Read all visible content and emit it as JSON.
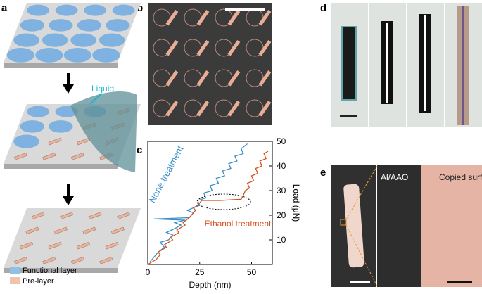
{
  "panels": {
    "a": "a",
    "b": "b",
    "c": "c",
    "d": "d",
    "e": "e"
  },
  "panel_a": {
    "liquid": "Liquid",
    "legend": [
      "Functional layer",
      "Pre-layer"
    ]
  },
  "panel_e": {
    "left": "Al/AAO",
    "right": "Copied surface"
  },
  "chart_data": {
    "type": "line",
    "xlabel": "Depth (nm)",
    "ylabel": "Load (μN)",
    "xlim": [
      0,
      60
    ],
    "ylim": [
      0,
      50
    ],
    "xticks": [
      0,
      25,
      50
    ],
    "yticks": [
      10,
      20,
      30,
      40,
      50
    ],
    "series": [
      {
        "name": "None treatment",
        "color": "#3a8fc9",
        "x": [
          1,
          3,
          5,
          8,
          6,
          10,
          12,
          9,
          14,
          16,
          13,
          18,
          3,
          20,
          22,
          19,
          25,
          24,
          28,
          27,
          31,
          30,
          34,
          33,
          37,
          36,
          40,
          39,
          43,
          42,
          46,
          45,
          48
        ],
        "values": [
          1,
          3,
          5,
          7,
          9,
          10,
          12,
          13,
          15,
          16,
          17,
          18,
          18.5,
          19,
          21,
          22,
          24,
          26,
          27,
          29,
          30,
          32,
          33,
          35,
          36,
          38,
          39,
          41,
          42,
          44,
          45,
          47,
          49
        ]
      },
      {
        "name": "Ethanol treatment",
        "color": "#d4501e",
        "x": [
          0,
          4,
          6,
          5,
          9,
          8,
          12,
          11,
          15,
          14,
          18,
          17,
          20,
          21,
          23,
          22,
          24,
          26,
          35,
          45,
          46,
          47,
          49,
          48,
          51,
          50,
          53,
          52,
          55,
          54,
          57,
          56,
          58
        ],
        "values": [
          0,
          2,
          4,
          5,
          7,
          8,
          10,
          11,
          13,
          14,
          16,
          17,
          19,
          20,
          22,
          23,
          24,
          26,
          26,
          26.5,
          28,
          30,
          31,
          33,
          34,
          36,
          37,
          39,
          40,
          42,
          43,
          45,
          46
        ]
      }
    ]
  }
}
